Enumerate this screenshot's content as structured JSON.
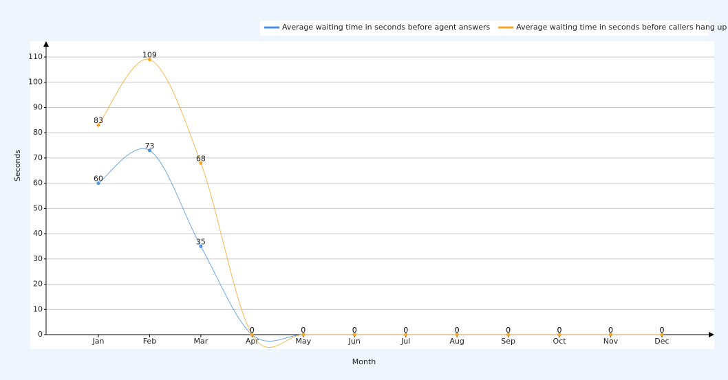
{
  "chart_data": {
    "type": "line",
    "x_label": "Month",
    "y_label": "Seconds",
    "categories": [
      "Jan",
      "Feb",
      "Mar",
      "Apr",
      "May",
      "Jun",
      "Jul",
      "Aug",
      "Sep",
      "Oct",
      "Nov",
      "Dec"
    ],
    "series": [
      {
        "name": "Average waiting time in seconds before agent answers",
        "color": "#4a90e2",
        "values": [
          60,
          73,
          35,
          0,
          0,
          0,
          0,
          0,
          0,
          0,
          0,
          0
        ]
      },
      {
        "name": "Average waiting time in seconds before callers hang up",
        "color": "#f5a623",
        "values": [
          83,
          109,
          68,
          0,
          0,
          0,
          0,
          0,
          0,
          0,
          0,
          0
        ]
      }
    ],
    "ylim": [
      0,
      110
    ],
    "yticks": [
      0,
      10,
      20,
      30,
      40,
      50,
      60,
      70,
      80,
      90,
      100,
      110
    ],
    "grid": true,
    "legend": "top-right",
    "smooth": true
  }
}
